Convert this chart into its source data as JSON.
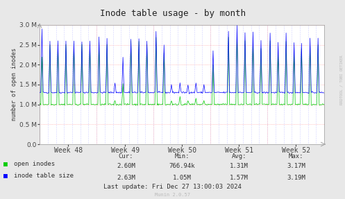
{
  "title": "Inode table usage - by month",
  "ylabel": "number of open inodes",
  "xlabel_ticks": [
    "Week 48",
    "Week 49",
    "Week 50",
    "Week 51",
    "Week 52"
  ],
  "ylim": [
    0.0,
    3000000
  ],
  "yticks": [
    0.0,
    500000,
    1000000,
    1500000,
    2000000,
    2500000,
    3000000
  ],
  "bg_color": "#e8e8e8",
  "plot_bg_color": "#ffffff",
  "grid_color_red": "#ffaaaa",
  "grid_color_blue": "#aaaaff",
  "green_color": "#00cc00",
  "blue_color": "#0000ff",
  "title_color": "#222222",
  "label_color": "#333333",
  "tick_label_color": "#444444",
  "stats_text_color": "#333333",
  "watermark_color": "#bbbbbb",
  "watermark_right": "RRDTOOL / TOBI OETIKER",
  "munin_label": "Munin 2.0.57",
  "last_update": "Last update: Fri Dec 27 13:00:03 2024",
  "stats_headers": [
    "Cur:",
    "Min:",
    "Avg:",
    "Max:"
  ],
  "stats_open": [
    "2.60M",
    "766.94k",
    "1.31M",
    "3.17M"
  ],
  "stats_table": [
    "2.63M",
    "1.05M",
    "1.57M",
    "3.19M"
  ],
  "legend_items": [
    "open inodes",
    "inode table size"
  ],
  "legend_colors": [
    "#00cc00",
    "#0000ff"
  ]
}
